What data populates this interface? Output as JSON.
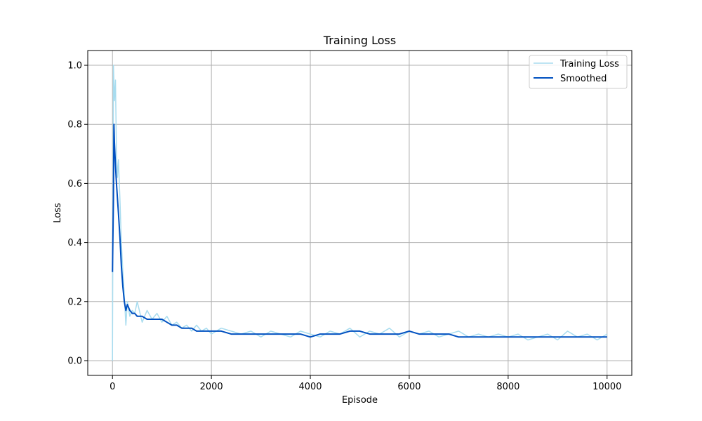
{
  "chart_data": {
    "type": "line",
    "title": "Training Loss",
    "xlabel": "Episode",
    "ylabel": "Loss",
    "xlim": [
      -500,
      10500
    ],
    "ylim": [
      -0.05,
      1.05
    ],
    "xticks": [
      0,
      2000,
      4000,
      6000,
      8000,
      10000
    ],
    "xtick_labels": [
      "0",
      "2000",
      "4000",
      "6000",
      "8000",
      "10000"
    ],
    "yticks": [
      0.0,
      0.2,
      0.4,
      0.6,
      0.8,
      1.0
    ],
    "ytick_labels": [
      "0.0",
      "0.2",
      "0.4",
      "0.6",
      "0.8",
      "1.0"
    ],
    "grid": true,
    "legend_position": "upper right",
    "series": [
      {
        "name": "Training Loss",
        "color": "#a8dcef",
        "x": [
          0,
          20,
          40,
          60,
          80,
          100,
          120,
          150,
          180,
          210,
          240,
          270,
          300,
          350,
          400,
          450,
          500,
          600,
          700,
          800,
          900,
          1000,
          1100,
          1200,
          1300,
          1400,
          1500,
          1600,
          1700,
          1800,
          1900,
          2000,
          2200,
          2400,
          2600,
          2800,
          3000,
          3200,
          3400,
          3600,
          3800,
          4000,
          4200,
          4400,
          4600,
          4800,
          5000,
          5200,
          5400,
          5600,
          5800,
          6000,
          6200,
          6400,
          6600,
          6800,
          7000,
          7200,
          7400,
          7600,
          7800,
          8000,
          8200,
          8400,
          8600,
          8800,
          9000,
          9200,
          9400,
          9600,
          9800,
          10000
        ],
        "values": [
          0.0,
          1.0,
          0.88,
          0.95,
          0.7,
          0.62,
          0.68,
          0.55,
          0.4,
          0.3,
          0.22,
          0.12,
          0.2,
          0.15,
          0.17,
          0.16,
          0.2,
          0.13,
          0.17,
          0.14,
          0.16,
          0.13,
          0.15,
          0.12,
          0.13,
          0.11,
          0.12,
          0.1,
          0.12,
          0.1,
          0.11,
          0.09,
          0.11,
          0.1,
          0.09,
          0.1,
          0.08,
          0.1,
          0.09,
          0.08,
          0.1,
          0.09,
          0.08,
          0.1,
          0.09,
          0.11,
          0.08,
          0.1,
          0.09,
          0.11,
          0.08,
          0.1,
          0.09,
          0.1,
          0.08,
          0.09,
          0.1,
          0.08,
          0.09,
          0.08,
          0.09,
          0.08,
          0.09,
          0.07,
          0.08,
          0.09,
          0.07,
          0.1,
          0.08,
          0.09,
          0.07,
          0.09
        ]
      },
      {
        "name": "Smoothed",
        "color": "#0050c0",
        "x": [
          0,
          20,
          30,
          40,
          60,
          80,
          100,
          120,
          150,
          180,
          210,
          240,
          270,
          300,
          350,
          400,
          450,
          500,
          600,
          700,
          800,
          900,
          1000,
          1100,
          1200,
          1300,
          1400,
          1500,
          1600,
          1700,
          1800,
          1900,
          2000,
          2200,
          2400,
          2600,
          2800,
          3000,
          3200,
          3400,
          3600,
          3800,
          4000,
          4200,
          4400,
          4600,
          4800,
          5000,
          5200,
          5400,
          5600,
          5800,
          6000,
          6200,
          6400,
          6600,
          6800,
          7000,
          7200,
          7400,
          7600,
          7800,
          8000,
          8200,
          8400,
          8600,
          8800,
          9000,
          9200,
          9400,
          9600,
          9800,
          10000
        ],
        "values": [
          0.3,
          0.55,
          0.8,
          0.74,
          0.66,
          0.6,
          0.55,
          0.5,
          0.42,
          0.32,
          0.25,
          0.2,
          0.17,
          0.19,
          0.17,
          0.16,
          0.16,
          0.15,
          0.15,
          0.14,
          0.14,
          0.14,
          0.14,
          0.13,
          0.12,
          0.12,
          0.11,
          0.11,
          0.11,
          0.1,
          0.1,
          0.1,
          0.1,
          0.1,
          0.09,
          0.09,
          0.09,
          0.09,
          0.09,
          0.09,
          0.09,
          0.09,
          0.08,
          0.09,
          0.09,
          0.09,
          0.1,
          0.1,
          0.09,
          0.09,
          0.09,
          0.09,
          0.1,
          0.09,
          0.09,
          0.09,
          0.09,
          0.08,
          0.08,
          0.08,
          0.08,
          0.08,
          0.08,
          0.08,
          0.08,
          0.08,
          0.08,
          0.08,
          0.08,
          0.08,
          0.08,
          0.08,
          0.08
        ]
      }
    ]
  }
}
